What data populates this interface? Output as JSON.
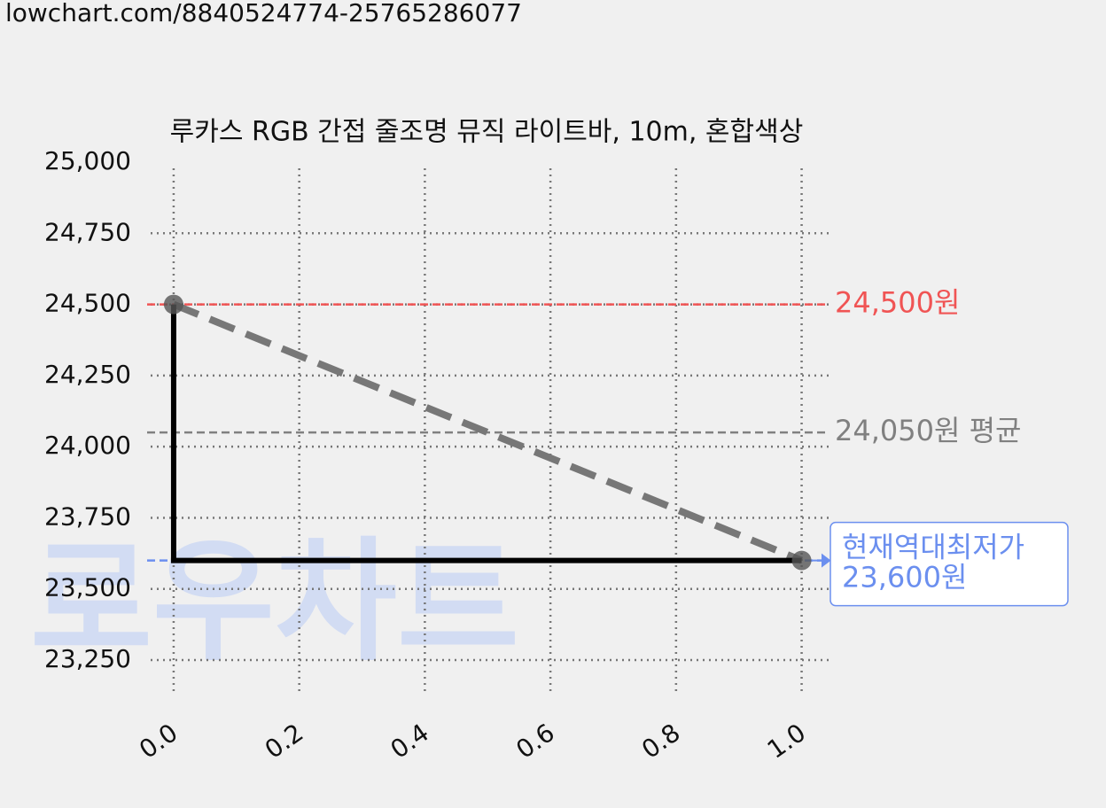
{
  "url": "lowchart.com/8840524774-25765286077",
  "watermark": "로우차트",
  "chart_data": {
    "type": "line",
    "title": "루카스 RGB 간접 줄조명 뮤직 라이트바, 10m, 혼합색상",
    "xlim": [
      -0.05,
      1.05
    ],
    "xticks": [
      {
        "value": 0,
        "label": "0.0"
      },
      {
        "value": 0.2,
        "label": "0.2"
      },
      {
        "value": 0.4,
        "label": "0.4"
      },
      {
        "value": 0.6,
        "label": "0.6"
      },
      {
        "value": 0.8,
        "label": "0.8"
      },
      {
        "value": 1,
        "label": "1.0"
      }
    ],
    "ylim": [
      23110,
      25000
    ],
    "yticks": [
      {
        "value": 23250,
        "label": "23,250"
      },
      {
        "value": 23500,
        "label": "23,500"
      },
      {
        "value": 23750,
        "label": "23,750"
      },
      {
        "value": 24000,
        "label": "24,000"
      },
      {
        "value": 24250,
        "label": "24,250"
      },
      {
        "value": 24500,
        "label": "24,500"
      },
      {
        "value": 24750,
        "label": "24,750"
      },
      {
        "value": 25000,
        "label": "25,000"
      }
    ],
    "grid": true,
    "series": [
      {
        "color": "#000000",
        "trend_color": "#777777",
        "x": [
          0,
          1
        ],
        "values": [
          24500,
          23600
        ],
        "drawstyle": "steps-pre"
      }
    ],
    "hlines": [
      {
        "value": 24500,
        "color": "#f05454",
        "labels": [
          "24,500원"
        ]
      },
      {
        "value": 24050,
        "color": "#808080",
        "labels": [
          "24,050원 평균"
        ]
      },
      {
        "value": 23600,
        "color": "#6b8fef",
        "labels": [
          "현재역대최저가",
          "23,600원"
        ],
        "boxed": true
      }
    ]
  }
}
